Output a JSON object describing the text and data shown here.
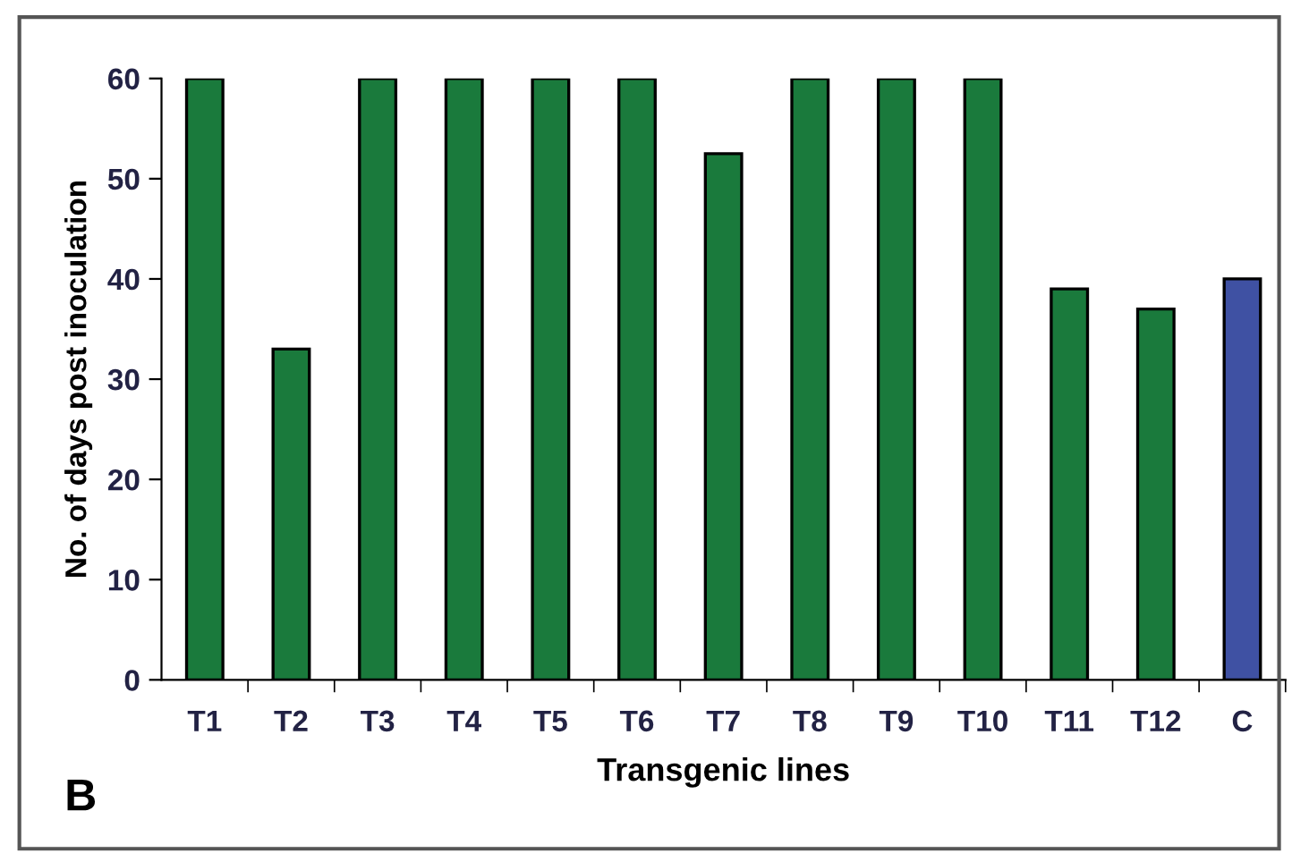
{
  "chart_data": {
    "type": "bar",
    "xlabel": "Transgenic lines",
    "ylabel": "No. of days post inoculation",
    "categories": [
      "T1",
      "T2",
      "T3",
      "T4",
      "T5",
      "T6",
      "T7",
      "T8",
      "T9",
      "T10",
      "T11",
      "T12",
      "C"
    ],
    "values": [
      60,
      33,
      60,
      60,
      60,
      60,
      52.5,
      60,
      60,
      60,
      39,
      37,
      40
    ],
    "colors": [
      "#1a7a3c",
      "#1a7a3c",
      "#1a7a3c",
      "#1a7a3c",
      "#1a7a3c",
      "#1a7a3c",
      "#1a7a3c",
      "#1a7a3c",
      "#1a7a3c",
      "#1a7a3c",
      "#1a7a3c",
      "#1a7a3c",
      "#3f51a3"
    ],
    "ylim": [
      0,
      60
    ],
    "yticks": [
      0,
      10,
      20,
      30,
      40,
      50,
      60
    ],
    "grid": false,
    "legend": false,
    "annotations": [
      "B"
    ]
  }
}
